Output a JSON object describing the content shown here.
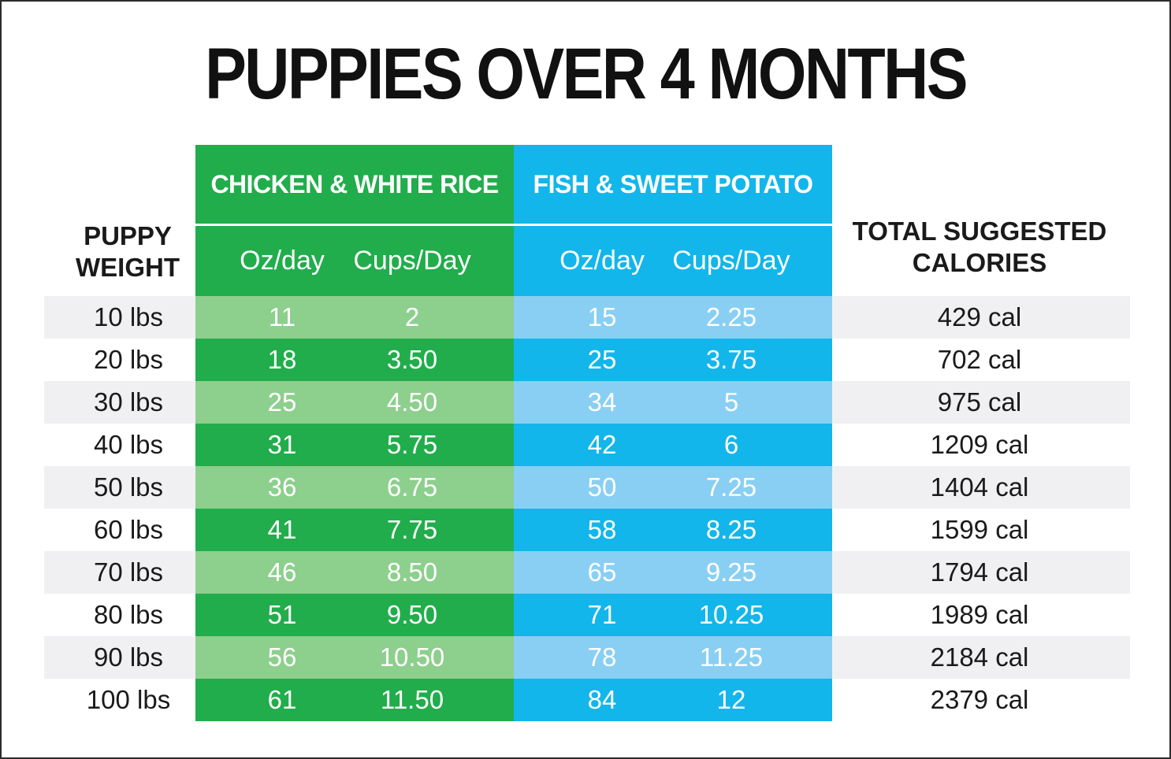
{
  "title": "PUPPIES OVER 4 MONTHS",
  "headers": {
    "weight_line1": "PUPPY",
    "weight_line2": "WEIGHT",
    "chicken": "CHICKEN & WHITE RICE",
    "fish": "FISH & SWEET POTATO",
    "calories_line1": "TOTAL SUGGESTED",
    "calories_line2": "CALORIES",
    "chicken_oz": "Oz/day",
    "chicken_cups": "Cups/Day",
    "fish_oz": "Oz/day",
    "fish_cups": "Cups/Day"
  },
  "colors": {
    "green_dark": "#21ad4b",
    "green_light": "#8dcf8d",
    "blue_dark": "#13b6ea",
    "blue_light": "#89cff3",
    "row_stripe": "#f0f0f3"
  },
  "rows": [
    {
      "weight": "10 lbs",
      "chicken_oz": "11",
      "chicken_cups": "2",
      "fish_oz": "15",
      "fish_cups": "2.25",
      "calories": "429 cal"
    },
    {
      "weight": "20 lbs",
      "chicken_oz": "18",
      "chicken_cups": "3.50",
      "fish_oz": "25",
      "fish_cups": "3.75",
      "calories": "702 cal"
    },
    {
      "weight": "30 lbs",
      "chicken_oz": "25",
      "chicken_cups": "4.50",
      "fish_oz": "34",
      "fish_cups": "5",
      "calories": "975 cal"
    },
    {
      "weight": "40 lbs",
      "chicken_oz": "31",
      "chicken_cups": "5.75",
      "fish_oz": "42",
      "fish_cups": "6",
      "calories": "1209 cal"
    },
    {
      "weight": "50 lbs",
      "chicken_oz": "36",
      "chicken_cups": "6.75",
      "fish_oz": "50",
      "fish_cups": "7.25",
      "calories": "1404 cal"
    },
    {
      "weight": "60 lbs",
      "chicken_oz": "41",
      "chicken_cups": "7.75",
      "fish_oz": "58",
      "fish_cups": "8.25",
      "calories": "1599 cal"
    },
    {
      "weight": "70 lbs",
      "chicken_oz": "46",
      "chicken_cups": "8.50",
      "fish_oz": "65",
      "fish_cups": "9.25",
      "calories": "1794 cal"
    },
    {
      "weight": "80 lbs",
      "chicken_oz": "51",
      "chicken_cups": "9.50",
      "fish_oz": "71",
      "fish_cups": "10.25",
      "calories": "1989 cal"
    },
    {
      "weight": "90 lbs",
      "chicken_oz": "56",
      "chicken_cups": "10.50",
      "fish_oz": "78",
      "fish_cups": "11.25",
      "calories": "2184 cal"
    },
    {
      "weight": "100 lbs",
      "chicken_oz": "61",
      "chicken_cups": "11.50",
      "fish_oz": "84",
      "fish_cups": "12",
      "calories": "2379 cal"
    }
  ]
}
